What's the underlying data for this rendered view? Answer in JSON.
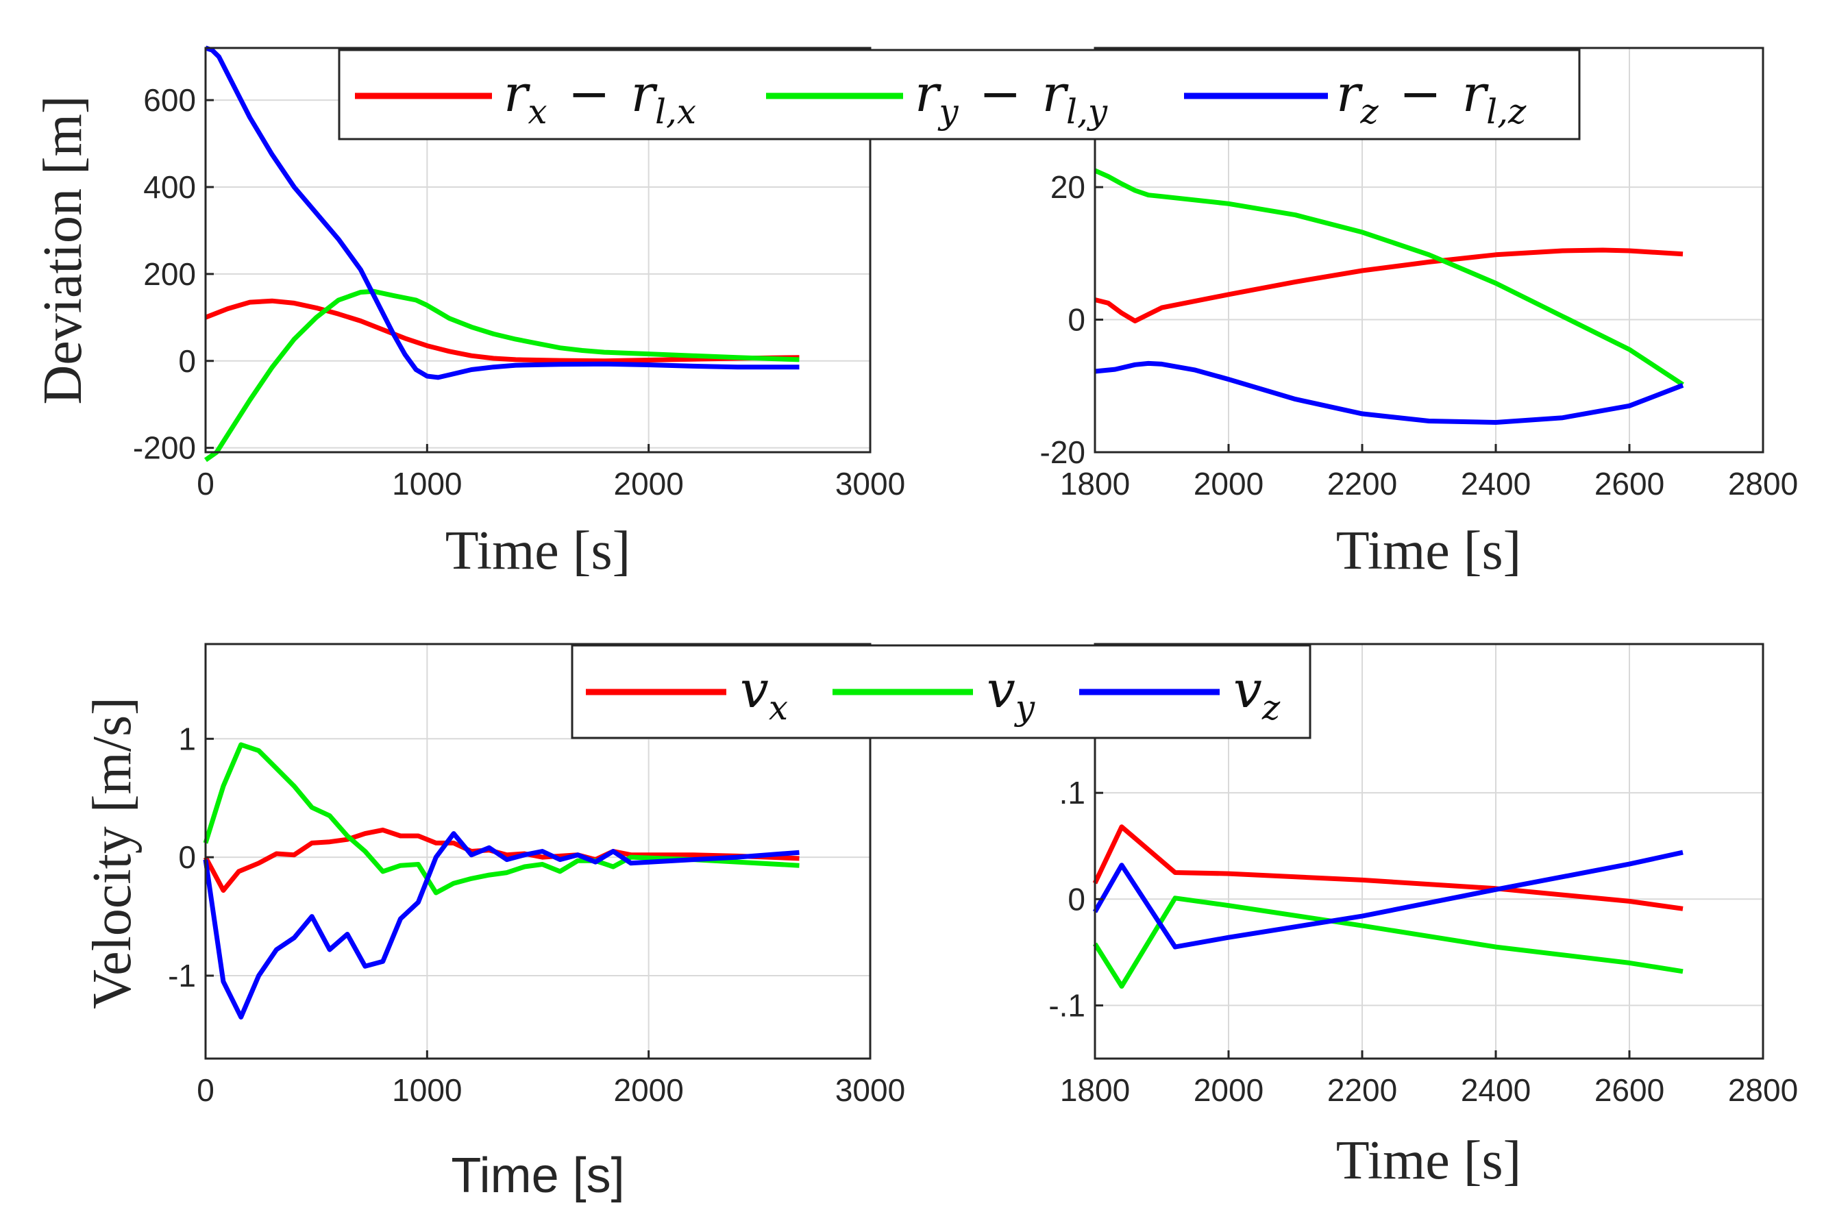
{
  "colors": {
    "x": "#ff0000",
    "y": "#00ee00",
    "z": "#0000ff",
    "grid": "#d9d9d9",
    "axis": "#262626"
  },
  "legend_top": {
    "entries": [
      {
        "series": "x",
        "base": "r",
        "sub1": "x",
        "op": "−",
        "base2": "r",
        "sub2": "l,x"
      },
      {
        "series": "y",
        "base": "r",
        "sub1": "y",
        "op": "−",
        "base2": "r",
        "sub2": "l,y"
      },
      {
        "series": "z",
        "base": "r",
        "sub1": "z",
        "op": "−",
        "base2": "r",
        "sub2": "l,z"
      }
    ]
  },
  "legend_bottom": {
    "entries": [
      {
        "series": "x",
        "base": "v",
        "sub1": "x"
      },
      {
        "series": "y",
        "base": "v",
        "sub1": "y"
      },
      {
        "series": "z",
        "base": "v",
        "sub1": "z"
      }
    ]
  },
  "chart_data": [
    {
      "id": "pos_full",
      "type": "line",
      "title": "",
      "xlabel": "Time [s]",
      "ylabel": "Deviation [m]",
      "xlim": [
        0,
        3000
      ],
      "ylim": [
        -210,
        720
      ],
      "xticks": [
        0,
        1000,
        2000,
        3000
      ],
      "yticks": [
        -200,
        0,
        200,
        400,
        600
      ],
      "grid": true,
      "series": [
        {
          "name": "x",
          "points": [
            [
              0,
              100
            ],
            [
              100,
              120
            ],
            [
              200,
              135
            ],
            [
              300,
              138
            ],
            [
              400,
              133
            ],
            [
              500,
              122
            ],
            [
              600,
              108
            ],
            [
              700,
              92
            ],
            [
              800,
              72
            ],
            [
              900,
              52
            ],
            [
              1000,
              35
            ],
            [
              1100,
              22
            ],
            [
              1200,
              12
            ],
            [
              1300,
              6
            ],
            [
              1400,
              3
            ],
            [
              1600,
              1
            ],
            [
              1800,
              0
            ],
            [
              2000,
              2
            ],
            [
              2200,
              4
            ],
            [
              2400,
              6
            ],
            [
              2680,
              8
            ]
          ]
        },
        {
          "name": "y",
          "points": [
            [
              0,
              -228
            ],
            [
              50,
              -210
            ],
            [
              100,
              -170
            ],
            [
              200,
              -90
            ],
            [
              300,
              -15
            ],
            [
              400,
              50
            ],
            [
              500,
              100
            ],
            [
              600,
              140
            ],
            [
              700,
              158
            ],
            [
              760,
              160
            ],
            [
              850,
              150
            ],
            [
              950,
              140
            ],
            [
              1000,
              128
            ],
            [
              1100,
              98
            ],
            [
              1200,
              78
            ],
            [
              1300,
              62
            ],
            [
              1400,
              50
            ],
            [
              1500,
              40
            ],
            [
              1600,
              30
            ],
            [
              1700,
              24
            ],
            [
              1800,
              20
            ],
            [
              2000,
              16
            ],
            [
              2200,
              12
            ],
            [
              2400,
              8
            ],
            [
              2680,
              3
            ]
          ]
        },
        {
          "name": "z",
          "points": [
            [
              0,
              720
            ],
            [
              30,
              715
            ],
            [
              60,
              700
            ],
            [
              100,
              660
            ],
            [
              150,
              610
            ],
            [
              200,
              560
            ],
            [
              300,
              475
            ],
            [
              400,
              400
            ],
            [
              500,
              340
            ],
            [
              600,
              280
            ],
            [
              700,
              210
            ],
            [
              780,
              130
            ],
            [
              850,
              60
            ],
            [
              900,
              15
            ],
            [
              950,
              -20
            ],
            [
              1000,
              -35
            ],
            [
              1050,
              -38
            ],
            [
              1100,
              -32
            ],
            [
              1200,
              -20
            ],
            [
              1300,
              -14
            ],
            [
              1400,
              -10
            ],
            [
              1600,
              -8
            ],
            [
              1800,
              -7
            ],
            [
              2000,
              -9
            ],
            [
              2200,
              -12
            ],
            [
              2400,
              -14
            ],
            [
              2680,
              -14
            ]
          ]
        }
      ]
    },
    {
      "id": "pos_zoom",
      "type": "line",
      "title": "",
      "xlabel": "Time [s]",
      "ylabel": "",
      "xlim": [
        1800,
        2800
      ],
      "ylim": [
        -20,
        41
      ],
      "xticks": [
        1800,
        2000,
        2200,
        2400,
        2600,
        2800
      ],
      "yticks": [
        -20,
        0,
        20
      ],
      "grid": true,
      "series": [
        {
          "name": "x",
          "points": [
            [
              1800,
              3
            ],
            [
              1820,
              2.5
            ],
            [
              1840,
              1
            ],
            [
              1860,
              -0.2
            ],
            [
              1880,
              0.8
            ],
            [
              1900,
              1.8
            ],
            [
              2000,
              3.8
            ],
            [
              2100,
              5.7
            ],
            [
              2200,
              7.4
            ],
            [
              2300,
              8.7
            ],
            [
              2400,
              9.8
            ],
            [
              2500,
              10.4
            ],
            [
              2560,
              10.5
            ],
            [
              2600,
              10.4
            ],
            [
              2680,
              9.9
            ]
          ]
        },
        {
          "name": "y",
          "points": [
            [
              1800,
              22.5
            ],
            [
              1820,
              21.6
            ],
            [
              1840,
              20.5
            ],
            [
              1860,
              19.5
            ],
            [
              1880,
              18.8
            ],
            [
              1900,
              18.6
            ],
            [
              2000,
              17.5
            ],
            [
              2100,
              15.8
            ],
            [
              2200,
              13.2
            ],
            [
              2300,
              9.8
            ],
            [
              2400,
              5.5
            ],
            [
              2500,
              0.5
            ],
            [
              2600,
              -4.5
            ],
            [
              2680,
              -9.8
            ]
          ]
        },
        {
          "name": "z",
          "points": [
            [
              1800,
              -7.8
            ],
            [
              1830,
              -7.5
            ],
            [
              1860,
              -6.8
            ],
            [
              1880,
              -6.6
            ],
            [
              1900,
              -6.7
            ],
            [
              1950,
              -7.6
            ],
            [
              2000,
              -9
            ],
            [
              2100,
              -12
            ],
            [
              2200,
              -14.2
            ],
            [
              2300,
              -15.3
            ],
            [
              2400,
              -15.5
            ],
            [
              2500,
              -14.8
            ],
            [
              2600,
              -13
            ],
            [
              2680,
              -9.9
            ]
          ]
        }
      ]
    },
    {
      "id": "vel_full",
      "type": "line",
      "title": "",
      "xlabel": "Time [s]",
      "ylabel": "Velocity [m/s]",
      "xlim": [
        0,
        3000
      ],
      "ylim": [
        -1.7,
        1.8
      ],
      "xticks": [
        0,
        1000,
        2000,
        3000
      ],
      "yticks": [
        -1,
        0,
        1
      ],
      "grid": true,
      "series": [
        {
          "name": "x",
          "points": [
            [
              0,
              0
            ],
            [
              80,
              -0.28
            ],
            [
              150,
              -0.12
            ],
            [
              240,
              -0.05
            ],
            [
              320,
              0.03
            ],
            [
              400,
              0.02
            ],
            [
              480,
              0.12
            ],
            [
              560,
              0.13
            ],
            [
              640,
              0.15
            ],
            [
              720,
              0.2
            ],
            [
              800,
              0.23
            ],
            [
              880,
              0.18
            ],
            [
              960,
              0.18
            ],
            [
              1040,
              0.12
            ],
            [
              1120,
              0.12
            ],
            [
              1200,
              0.05
            ],
            [
              1280,
              0.06
            ],
            [
              1360,
              0.02
            ],
            [
              1440,
              0.03
            ],
            [
              1520,
              0
            ],
            [
              1600,
              0.01
            ],
            [
              1680,
              0.02
            ],
            [
              1760,
              -0.02
            ],
            [
              1840,
              0.05
            ],
            [
              1920,
              0.02
            ],
            [
              2000,
              0.02
            ],
            [
              2200,
              0.02
            ],
            [
              2400,
              0.01
            ],
            [
              2680,
              -0.01
            ]
          ]
        },
        {
          "name": "y",
          "points": [
            [
              0,
              0.12
            ],
            [
              80,
              0.6
            ],
            [
              160,
              0.95
            ],
            [
              240,
              0.9
            ],
            [
              320,
              0.75
            ],
            [
              400,
              0.6
            ],
            [
              480,
              0.42
            ],
            [
              560,
              0.35
            ],
            [
              640,
              0.18
            ],
            [
              720,
              0.05
            ],
            [
              800,
              -0.12
            ],
            [
              880,
              -0.07
            ],
            [
              960,
              -0.06
            ],
            [
              1040,
              -0.3
            ],
            [
              1120,
              -0.22
            ],
            [
              1200,
              -0.18
            ],
            [
              1280,
              -0.15
            ],
            [
              1360,
              -0.13
            ],
            [
              1440,
              -0.08
            ],
            [
              1520,
              -0.06
            ],
            [
              1600,
              -0.12
            ],
            [
              1680,
              -0.03
            ],
            [
              1760,
              -0.03
            ],
            [
              1840,
              -0.08
            ],
            [
              1920,
              0
            ],
            [
              2200,
              -0.02
            ],
            [
              2400,
              -0.04
            ],
            [
              2680,
              -0.07
            ]
          ]
        },
        {
          "name": "z",
          "points": [
            [
              0,
              -0.02
            ],
            [
              80,
              -1.05
            ],
            [
              160,
              -1.35
            ],
            [
              240,
              -1.0
            ],
            [
              320,
              -0.78
            ],
            [
              400,
              -0.68
            ],
            [
              480,
              -0.5
            ],
            [
              560,
              -0.78
            ],
            [
              640,
              -0.65
            ],
            [
              720,
              -0.92
            ],
            [
              800,
              -0.88
            ],
            [
              880,
              -0.52
            ],
            [
              960,
              -0.38
            ],
            [
              1040,
              0
            ],
            [
              1120,
              0.2
            ],
            [
              1200,
              0.02
            ],
            [
              1280,
              0.08
            ],
            [
              1360,
              -0.02
            ],
            [
              1440,
              0.02
            ],
            [
              1520,
              0.05
            ],
            [
              1600,
              -0.02
            ],
            [
              1680,
              0.02
            ],
            [
              1760,
              -0.04
            ],
            [
              1840,
              0.05
            ],
            [
              1920,
              -0.05
            ],
            [
              2200,
              -0.02
            ],
            [
              2400,
              0
            ],
            [
              2680,
              0.04
            ]
          ]
        }
      ]
    },
    {
      "id": "vel_zoom",
      "type": "line",
      "title": "",
      "xlabel": "Time [s]",
      "ylabel": "",
      "xlim": [
        1800,
        2800
      ],
      "ylim": [
        -0.15,
        0.24
      ],
      "xticks": [
        1800,
        2000,
        2200,
        2400,
        2600,
        2800
      ],
      "yticks": [
        -0.1,
        0,
        0.1
      ],
      "grid": true,
      "series": [
        {
          "name": "x",
          "points": [
            [
              1800,
              0.015
            ],
            [
              1840,
              0.068
            ],
            [
              1920,
              0.025
            ],
            [
              2000,
              0.024
            ],
            [
              2200,
              0.018
            ],
            [
              2400,
              0.01
            ],
            [
              2600,
              -0.002
            ],
            [
              2680,
              -0.009
            ]
          ]
        },
        {
          "name": "y",
          "points": [
            [
              1800,
              -0.042
            ],
            [
              1840,
              -0.082
            ],
            [
              1920,
              0.001
            ],
            [
              2000,
              -0.006
            ],
            [
              2200,
              -0.025
            ],
            [
              2400,
              -0.045
            ],
            [
              2600,
              -0.06
            ],
            [
              2680,
              -0.068
            ]
          ]
        },
        {
          "name": "z",
          "points": [
            [
              1800,
              -0.012
            ],
            [
              1840,
              0.032
            ],
            [
              1920,
              -0.045
            ],
            [
              2000,
              -0.036
            ],
            [
              2200,
              -0.016
            ],
            [
              2400,
              0.009
            ],
            [
              2600,
              0.033
            ],
            [
              2680,
              0.044
            ]
          ]
        }
      ]
    }
  ]
}
